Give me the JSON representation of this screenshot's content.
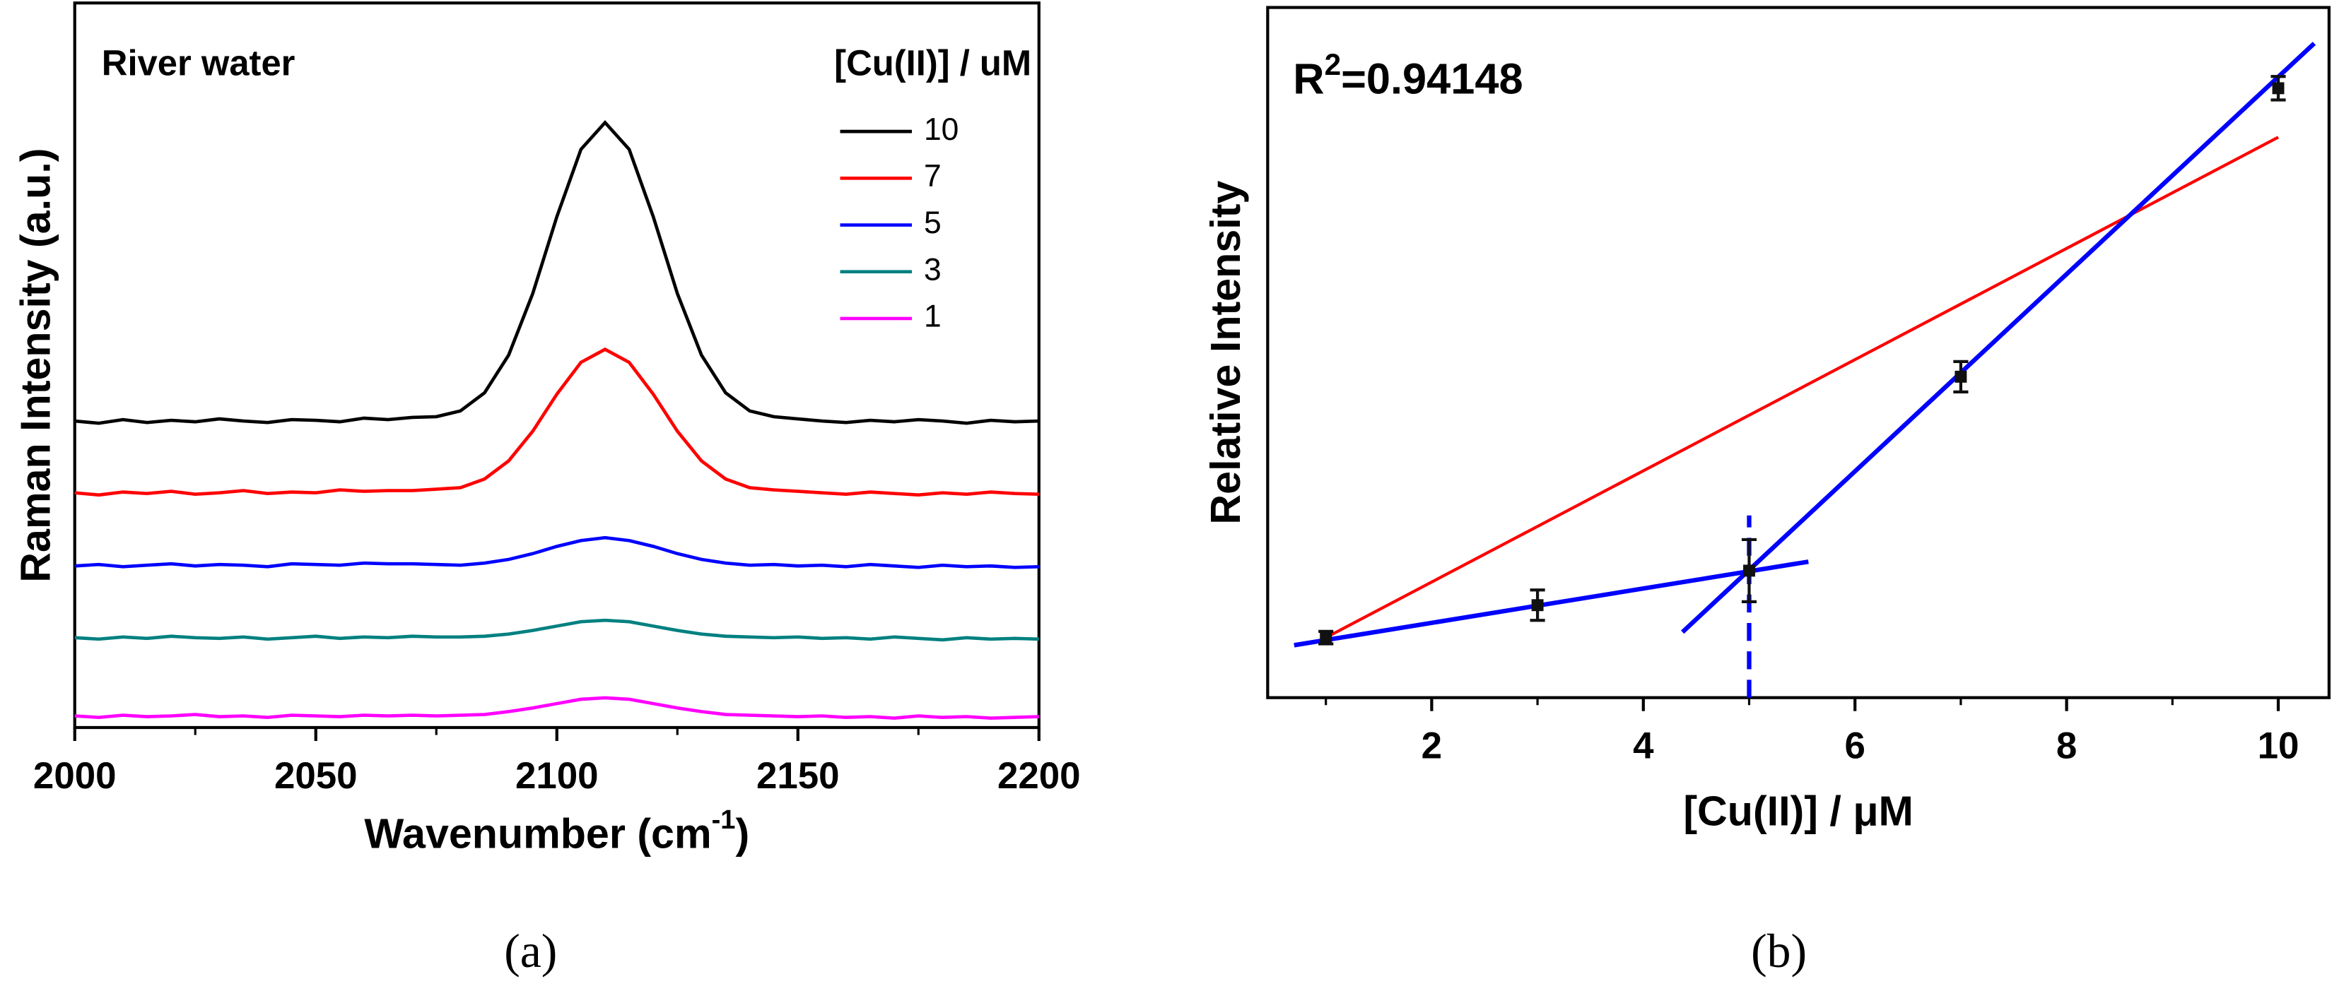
{
  "chart_data": [
    {
      "type": "line",
      "caption": "(a)",
      "annotation": "River water",
      "ylabel": "Raman Intensity (a.u.)",
      "xlabel": {
        "text": "Wavenumber (cm",
        "sup": "-1",
        "end": ")"
      },
      "legend_title": "[Cu(II)] / uM",
      "legend": "top-right",
      "xlim": [
        2000,
        2200
      ],
      "xticks": [
        2000,
        2050,
        2100,
        2150,
        2200
      ],
      "xminor": [
        2025,
        2075,
        2125,
        2175
      ],
      "ylim": [
        0,
        100
      ],
      "x": [
        2000,
        2005,
        2010,
        2015,
        2020,
        2025,
        2030,
        2035,
        2040,
        2045,
        2050,
        2055,
        2060,
        2065,
        2070,
        2075,
        2080,
        2085,
        2090,
        2095,
        2100,
        2105,
        2110,
        2115,
        2120,
        2125,
        2130,
        2135,
        2140,
        2145,
        2150,
        2155,
        2160,
        2165,
        2170,
        2175,
        2180,
        2185,
        2190,
        2195,
        2200
      ],
      "series": [
        {
          "name": "10",
          "color": "#000000",
          "values": [
            42.3,
            42.0,
            42.5,
            42.1,
            42.4,
            42.2,
            42.6,
            42.3,
            42.1,
            42.5,
            42.4,
            42.2,
            42.7,
            42.5,
            42.8,
            42.9,
            43.7,
            46.2,
            51.4,
            59.9,
            70.5,
            79.8,
            83.5,
            79.8,
            70.5,
            59.9,
            51.4,
            46.2,
            43.7,
            42.9,
            42.6,
            42.3,
            42.1,
            42.4,
            42.2,
            42.5,
            42.3,
            42.0,
            42.4,
            42.2,
            42.3
          ]
        },
        {
          "name": "7",
          "color": "#ff0000",
          "values": [
            32.4,
            32.1,
            32.5,
            32.3,
            32.6,
            32.2,
            32.4,
            32.7,
            32.3,
            32.5,
            32.4,
            32.8,
            32.6,
            32.7,
            32.7,
            32.9,
            33.1,
            34.3,
            36.8,
            40.9,
            46.0,
            50.4,
            52.2,
            50.4,
            46.0,
            40.9,
            36.8,
            34.3,
            33.1,
            32.8,
            32.6,
            32.4,
            32.2,
            32.5,
            32.3,
            32.1,
            32.4,
            32.2,
            32.5,
            32.3,
            32.2
          ]
        },
        {
          "name": "5",
          "color": "#0000ff",
          "values": [
            22.3,
            22.5,
            22.2,
            22.4,
            22.6,
            22.3,
            22.5,
            22.4,
            22.2,
            22.6,
            22.5,
            22.4,
            22.7,
            22.6,
            22.6,
            22.5,
            22.4,
            22.7,
            23.2,
            24.0,
            25.0,
            25.8,
            26.2,
            25.8,
            25.0,
            24.0,
            23.2,
            22.7,
            22.4,
            22.5,
            22.3,
            22.4,
            22.2,
            22.5,
            22.3,
            22.1,
            22.4,
            22.2,
            22.3,
            22.1,
            22.2
          ]
        },
        {
          "name": "3",
          "color": "#008080",
          "values": [
            12.4,
            12.2,
            12.5,
            12.3,
            12.6,
            12.4,
            12.3,
            12.5,
            12.2,
            12.4,
            12.6,
            12.3,
            12.5,
            12.4,
            12.6,
            12.5,
            12.5,
            12.6,
            12.9,
            13.4,
            14.0,
            14.6,
            14.8,
            14.6,
            14.0,
            13.4,
            12.9,
            12.6,
            12.5,
            12.4,
            12.5,
            12.3,
            12.4,
            12.2,
            12.5,
            12.3,
            12.1,
            12.4,
            12.2,
            12.3,
            12.2
          ]
        },
        {
          "name": "1",
          "color": "#ff00ff",
          "values": [
            1.6,
            1.4,
            1.7,
            1.5,
            1.6,
            1.8,
            1.5,
            1.6,
            1.4,
            1.7,
            1.6,
            1.5,
            1.7,
            1.6,
            1.7,
            1.6,
            1.7,
            1.8,
            2.2,
            2.7,
            3.3,
            3.9,
            4.1,
            3.9,
            3.3,
            2.7,
            2.2,
            1.8,
            1.7,
            1.6,
            1.5,
            1.6,
            1.4,
            1.5,
            1.3,
            1.6,
            1.4,
            1.5,
            1.3,
            1.4,
            1.5
          ]
        }
      ]
    },
    {
      "type": "scatter",
      "caption": "(b)",
      "annotation": {
        "text": "R",
        "sup": "2",
        "end": "=0.94148"
      },
      "ylabel": "Relative Intensity",
      "xlabel": "[Cu(II)] / μM",
      "xlim": [
        0.45,
        10.48
      ],
      "xticks": [
        2,
        4,
        6,
        8,
        10
      ],
      "xminor": [
        1,
        3,
        5,
        7,
        9
      ],
      "ylim": [
        0,
        100
      ],
      "points": {
        "color": "#111111",
        "x": [
          1,
          3,
          5,
          7,
          10
        ],
        "values": [
          8.7,
          13.4,
          18.4,
          46.5,
          88.3
        ],
        "errors": [
          0.9,
          2.2,
          4.5,
          2.2,
          1.7
        ]
      },
      "lines": [
        {
          "color": "#ff0000",
          "x": [
            1,
            10
          ],
          "values": [
            8.7,
            81.2
          ]
        },
        {
          "color": "#0000ff",
          "x": [
            0.7,
            5.56
          ],
          "values": [
            7.6,
            19.7
          ]
        },
        {
          "color": "#0000ff",
          "x": [
            4.37,
            10.34
          ],
          "values": [
            9.5,
            94.8
          ]
        },
        {
          "color": "#0000ff",
          "dashed": true,
          "x": [
            5,
            5
          ],
          "values": [
            0,
            26.4
          ]
        }
      ]
    }
  ]
}
